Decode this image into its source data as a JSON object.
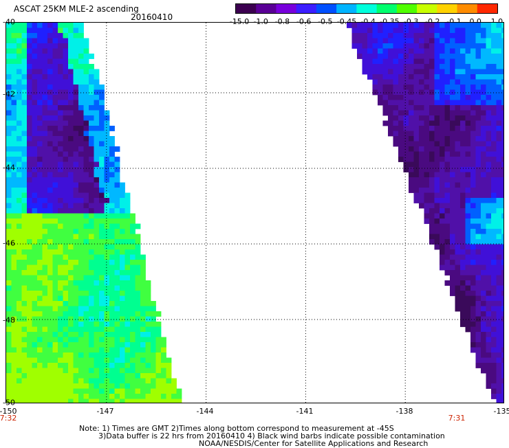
{
  "header": {
    "title": "ASCAT 25KM MLE-2 ascending",
    "date": "20160410"
  },
  "colorbar": {
    "labels": [
      "-15.0",
      "-1.0",
      "-0.8",
      "-0.6",
      "-0.5",
      "-0.45",
      "-0.4",
      "-0.35",
      "-0.3",
      "-0.2",
      "-0.1",
      "0.0",
      "1.0"
    ],
    "colors": [
      "#3c0050",
      "#5a0096",
      "#7800dc",
      "#3c1eff",
      "#0050ff",
      "#00b4ff",
      "#00ffdc",
      "#00ff6e",
      "#50ff00",
      "#c8ff00",
      "#ffd200",
      "#ff8c00",
      "#ff2800"
    ]
  },
  "map": {
    "y_labels": [
      "-40",
      "-42",
      "-44",
      "-46",
      "-48",
      "-50"
    ],
    "x_labels": [
      "-150",
      "-147",
      "-144",
      "-141",
      "-138",
      "-135"
    ],
    "time_labels": [
      "7:32",
      "7:31"
    ],
    "palette": [
      "#3a0a5a",
      "#4a0a80",
      "#5010a8",
      "#4010d8",
      "#2020ff",
      "#0060ff",
      "#00b8ff",
      "#00f0e8",
      "#00ff90",
      "#40ff40",
      "#a0ff00"
    ]
  },
  "notes": {
    "line1": "Note: 1) Times are GMT 2)Times along bottom correspond to measurement at -45S",
    "line2": "3)Data buffer is 22 hrs from 20160410 4) Black wind barbs indicate possible contamination",
    "line3": "NOAA/NESDIS/Center for Satellite Applications and Research"
  }
}
